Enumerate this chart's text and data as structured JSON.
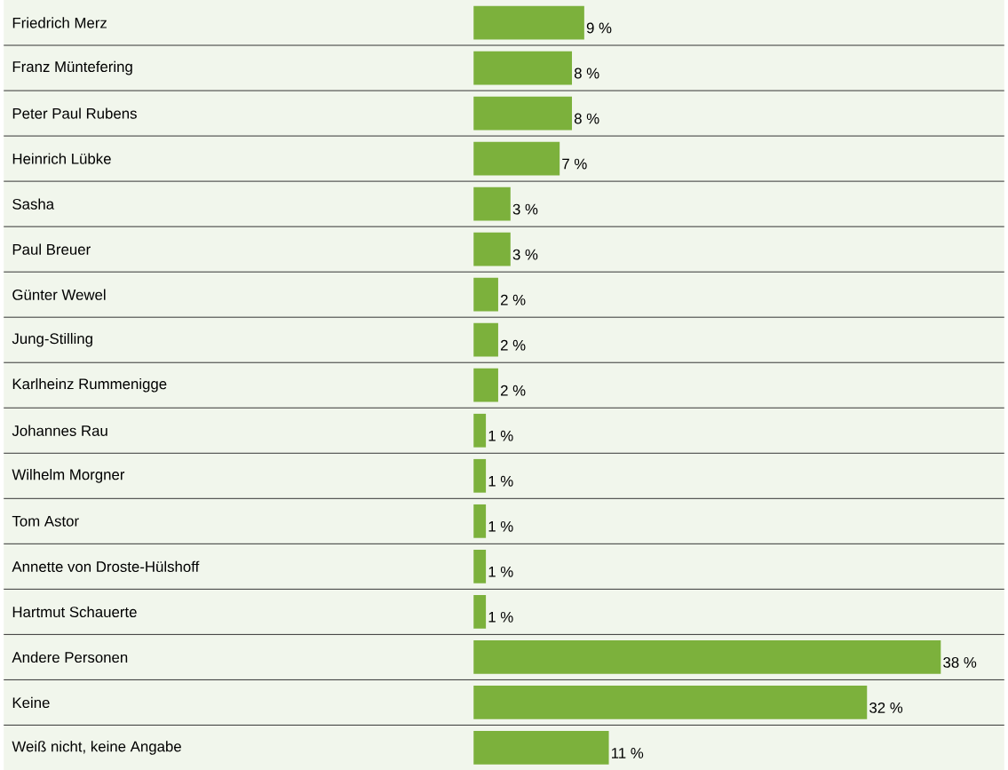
{
  "chart_data": {
    "type": "bar",
    "orientation": "horizontal",
    "categories": [
      "Friedrich Merz",
      "Franz Müntefering",
      "Peter Paul Rubens",
      "Heinrich Lübke",
      "Sasha",
      "Paul Breuer",
      "Günter Wewel",
      "Jung-Stilling",
      "Karlheinz Rummenigge",
      "Johannes Rau",
      "Wilhelm Morgner",
      "Tom Astor",
      "Annette von Droste-Hülshoff",
      "Hartmut Schauerte",
      "Andere Personen",
      "Keine",
      "Weiß nicht, keine Angabe"
    ],
    "values": [
      9,
      8,
      8,
      7,
      3,
      3,
      2,
      2,
      2,
      1,
      1,
      1,
      1,
      1,
      38,
      32,
      11
    ],
    "value_labels": [
      "9 %",
      "8 %",
      "8 %",
      "7 %",
      "3 %",
      "3 %",
      "2 %",
      "2 %",
      "2 %",
      "1 %",
      "1 %",
      "1 %",
      "1 %",
      "1 %",
      "38 %",
      "32 %",
      "11 %"
    ],
    "color": "#7cb13c",
    "grid": "y"
  }
}
